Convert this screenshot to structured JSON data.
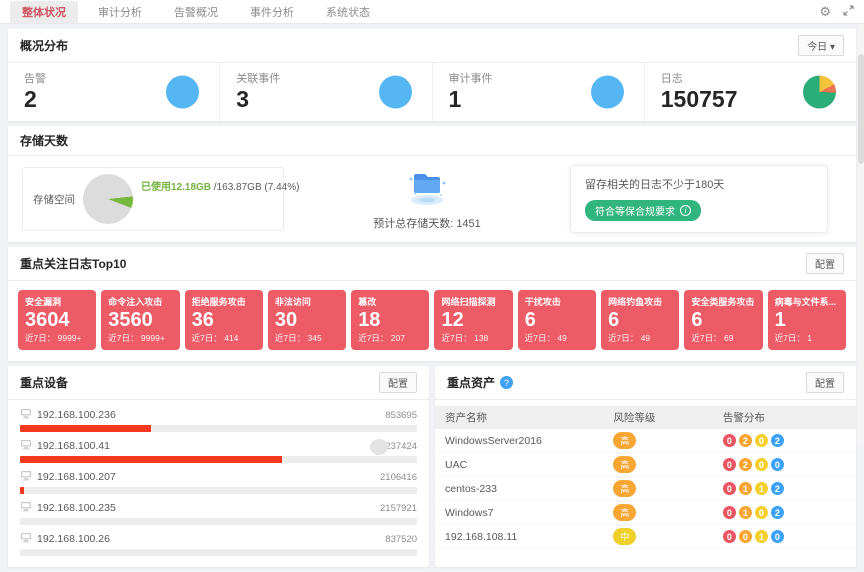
{
  "topbar": {
    "tabs": [
      {
        "label": "整体状况",
        "active": true
      },
      {
        "label": "审计分析",
        "active": false
      },
      {
        "label": "告警概况",
        "active": false
      },
      {
        "label": "事件分析",
        "active": false
      },
      {
        "label": "系统状态",
        "active": false
      }
    ]
  },
  "overview": {
    "title": "概况分布",
    "period": "今日",
    "stats": [
      {
        "label": "告警",
        "value": "2",
        "icon": "blue-circle"
      },
      {
        "label": "关联事件",
        "value": "3",
        "icon": "blue-circle"
      },
      {
        "label": "审计事件",
        "value": "1",
        "icon": "blue-circle"
      },
      {
        "label": "日志",
        "value": "150757",
        "icon": "pie-chart"
      }
    ]
  },
  "storage": {
    "title": "存储天数",
    "space_label": "存储空间",
    "used_text": "已使用12.18GB",
    "total_text": " /163.87GB (7.44%)",
    "used_percent": 7.44,
    "days_text": "预计总存储天数: 1451",
    "note": "留存相关的日志不少于180天",
    "compliance_label": "符合等保合规要求"
  },
  "top_logs": {
    "title": "重点关注日志Top10",
    "config_label": "配置",
    "recent_label": "近7日：",
    "cards": [
      {
        "name": "安全漏洞",
        "value": "3604",
        "recent": "9999+"
      },
      {
        "name": "命令注入攻击",
        "value": "3560",
        "recent": "9999+"
      },
      {
        "name": "拒绝服务攻击",
        "value": "36",
        "recent": "414"
      },
      {
        "name": "非法访问",
        "value": "30",
        "recent": "345"
      },
      {
        "name": "篡改",
        "value": "18",
        "recent": "207"
      },
      {
        "name": "网络扫描探测",
        "value": "12",
        "recent": "138"
      },
      {
        "name": "干扰攻击",
        "value": "6",
        "recent": "49"
      },
      {
        "name": "网络钓鱼攻击",
        "value": "6",
        "recent": "49"
      },
      {
        "name": "安全类服务攻击",
        "value": "6",
        "recent": "69"
      },
      {
        "name": "病毒与文件系...",
        "value": "1",
        "recent": "1"
      }
    ]
  },
  "devices": {
    "title": "重点设备",
    "config_label": "配置",
    "rows": [
      {
        "ip": "192.168.100.236",
        "value": "853695",
        "bar_percent": 33
      },
      {
        "ip": "192.168.100.41",
        "value": "237424",
        "bar_percent": 66
      },
      {
        "ip": "192.168.100.207",
        "value": "2106416",
        "bar_percent": 1
      },
      {
        "ip": "192.168.100.235",
        "value": "2157921",
        "bar_percent": 0
      },
      {
        "ip": "192.168.100.26",
        "value": "837520",
        "bar_percent": 0
      }
    ]
  },
  "assets": {
    "title": "重点资产",
    "config_label": "配置",
    "columns": [
      "资产名称",
      "风险等级",
      "告警分布"
    ],
    "rows": [
      {
        "name": "WindowsServer2016",
        "risk": "高",
        "risk_level": "high",
        "counts": [
          0,
          2,
          0,
          2
        ]
      },
      {
        "name": "UAC",
        "risk": "高",
        "risk_level": "high",
        "counts": [
          0,
          2,
          0,
          0
        ]
      },
      {
        "name": "centos-233",
        "risk": "高",
        "risk_level": "high",
        "counts": [
          0,
          1,
          1,
          2
        ]
      },
      {
        "name": "Windows7",
        "risk": "高",
        "risk_level": "high",
        "counts": [
          0,
          1,
          0,
          2
        ]
      },
      {
        "name": "192.168.108.11",
        "risk": "中",
        "risk_level": "medium",
        "counts": [
          0,
          0,
          1,
          0
        ]
      }
    ]
  },
  "colors": {
    "accent_red": "#ec5b66",
    "stat_blue": "#55b6f3",
    "compliance_green": "#31b57f",
    "usage_green": "#76b23e",
    "device_bar_red": "#f5391f",
    "risk_high": "#f7a634",
    "risk_medium": "#efd02a",
    "severity": [
      "#eb5462",
      "#f7a634",
      "#f2cf2d",
      "#3da2f5"
    ]
  }
}
